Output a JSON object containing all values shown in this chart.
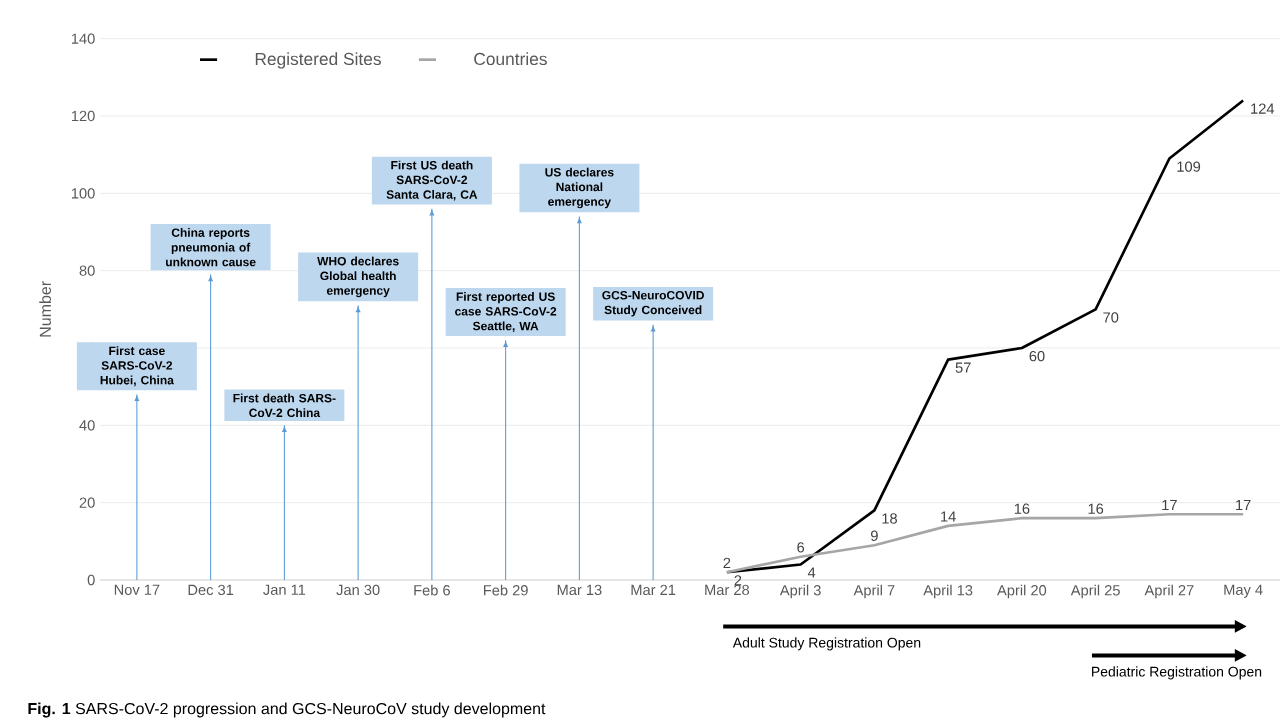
{
  "chart_data": {
    "type": "line",
    "title": "**Fig. 1** SARS-CoV-2 progression and GCS-NeuroCoV study development",
    "ylabel": "Number",
    "categories": [
      "Nov 17",
      "Dec 31",
      "Jan 11",
      "Jan 30",
      "Feb 6",
      "Feb 29",
      "Mar 13",
      "Mar 21",
      "Mar 28",
      "April 3",
      "April 7",
      "April 13",
      "April 20",
      "April 25",
      "April 27",
      "May 4"
    ],
    "series": [
      {
        "name": "Registered Sites",
        "color": "#000000",
        "values": [
          null,
          null,
          null,
          null,
          null,
          null,
          null,
          null,
          2,
          4,
          18,
          57,
          60,
          70,
          109,
          124
        ]
      },
      {
        "name": "Countries",
        "color": "#a6a6a6",
        "values": [
          null,
          null,
          null,
          null,
          null,
          null,
          null,
          null,
          2,
          6,
          9,
          14,
          16,
          16,
          17,
          17
        ]
      }
    ],
    "ylim": [
      0,
      140
    ],
    "yticks": [
      0,
      20,
      40,
      60,
      80,
      100,
      120,
      140
    ],
    "grid": "y",
    "legend": "top left",
    "data_labels": true,
    "marker": "none",
    "ref_lines": [
      {
        "axis": "x",
        "value": "Nov 17",
        "label": "First case SARS-CoV-2 Hubei, China",
        "color": "#5b9bd5"
      },
      {
        "axis": "x",
        "value": "Dec 31",
        "label": "China reports pneumonia of unknown cause",
        "color": "#5b9bd5"
      },
      {
        "axis": "x",
        "value": "Jan 11",
        "label": "First death SARS-CoV-2 China",
        "color": "#5b9bd5"
      },
      {
        "axis": "x",
        "value": "Jan 30",
        "label": "WHO declares Global health emergency",
        "color": "#5b9bd5"
      },
      {
        "axis": "x",
        "value": "Feb 6",
        "label": "First US death SARS-CoV-2 Santa Clara, CA",
        "color": "#5b9bd5"
      },
      {
        "axis": "x",
        "value": "Feb 29",
        "label": "First reported US case SARS-CoV-2 Seattle, WA",
        "color": "#5b9bd5"
      },
      {
        "axis": "x",
        "value": "Mar 13",
        "label": "US declares National emergency",
        "color": "#5b9bd5"
      },
      {
        "axis": "x",
        "value": "Mar 21",
        "label": "GCS-NeuroCOVID Study Conceived",
        "color": "#5b9bd5"
      }
    ],
    "annotations": [
      "Adult Study Registration Open",
      "Pediatric Registration Open"
    ]
  }
}
